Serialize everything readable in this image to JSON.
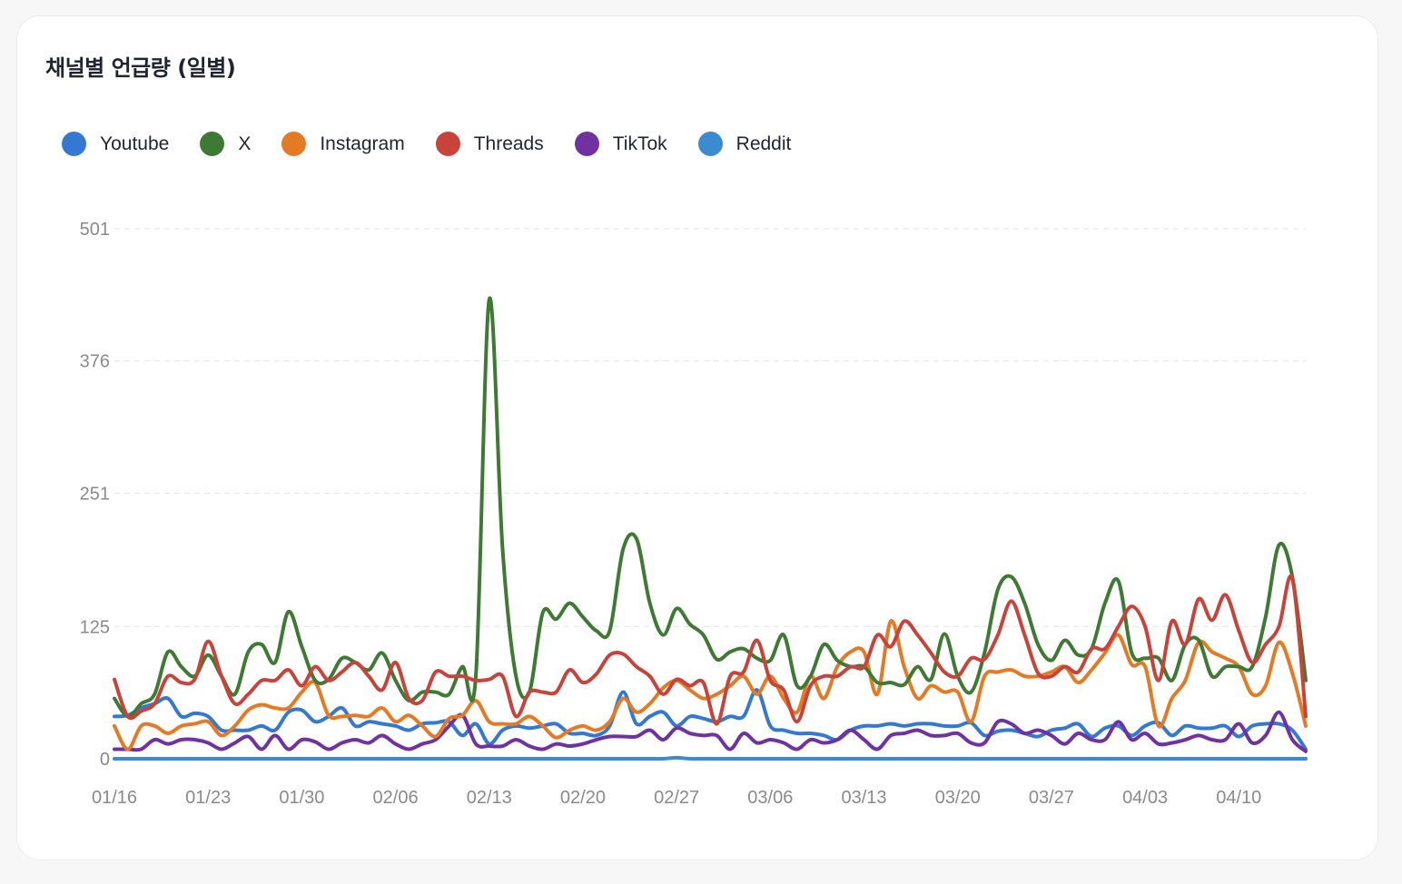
{
  "chart_data": {
    "type": "line",
    "title": "채널별 언급량 (일별)",
    "xlabel": "",
    "ylabel": "",
    "ylim": [
      0,
      501
    ],
    "yticks": [
      "0",
      "125",
      "251",
      "376",
      "501"
    ],
    "ytick_values": [
      0,
      125,
      251,
      376,
      501
    ],
    "grid": true,
    "legend_position": "top-left",
    "xtick_every": 7,
    "categories": [
      "01/16",
      "01/17",
      "01/18",
      "01/19",
      "01/20",
      "01/21",
      "01/22",
      "01/23",
      "01/24",
      "01/25",
      "01/26",
      "01/27",
      "01/28",
      "01/29",
      "01/30",
      "01/31",
      "02/01",
      "02/02",
      "02/03",
      "02/04",
      "02/05",
      "02/06",
      "02/07",
      "02/08",
      "02/09",
      "02/10",
      "02/11",
      "02/12",
      "02/13",
      "02/14",
      "02/15",
      "02/16",
      "02/17",
      "02/18",
      "02/19",
      "02/20",
      "02/21",
      "02/22",
      "02/23",
      "02/24",
      "02/25",
      "02/26",
      "02/27",
      "02/28",
      "03/01",
      "03/02",
      "03/03",
      "03/04",
      "03/05",
      "03/06",
      "03/07",
      "03/08",
      "03/09",
      "03/10",
      "03/11",
      "03/12",
      "03/13",
      "03/14",
      "03/15",
      "03/16",
      "03/17",
      "03/18",
      "03/19",
      "03/20",
      "03/21",
      "03/22",
      "03/23",
      "03/24",
      "03/25",
      "03/26",
      "03/27",
      "03/28",
      "03/29",
      "03/30",
      "03/31",
      "04/01",
      "04/02",
      "04/03",
      "04/04",
      "04/05",
      "04/06",
      "04/07",
      "04/08",
      "04/09",
      "04/10",
      "04/11",
      "04/12",
      "04/13",
      "04/14",
      "04/15"
    ],
    "series": [
      {
        "name": "Youtube",
        "color": "#3478d4",
        "values": [
          40,
          41,
          48,
          52,
          57,
          40,
          43,
          40,
          27,
          27,
          27,
          31,
          27,
          44,
          46,
          35,
          40,
          48,
          31,
          35,
          33,
          31,
          27,
          33,
          34,
          35,
          22,
          33,
          14,
          27,
          31,
          29,
          31,
          33,
          24,
          24,
          22,
          31,
          63,
          33,
          40,
          44,
          31,
          40,
          38,
          35,
          40,
          40,
          65,
          31,
          27,
          24,
          24,
          22,
          18,
          27,
          31,
          31,
          33,
          31,
          33,
          33,
          31,
          31,
          34,
          22,
          26,
          27,
          24,
          21,
          27,
          29,
          33,
          21,
          29,
          31,
          22,
          31,
          34,
          22,
          31,
          29,
          29,
          31,
          21,
          31,
          33,
          33,
          27,
          9
        ]
      },
      {
        "name": "X",
        "color": "#3f7a35",
        "values": [
          57,
          40,
          52,
          61,
          101,
          87,
          78,
          98,
          78,
          61,
          101,
          108,
          91,
          139,
          106,
          74,
          75,
          95,
          91,
          84,
          100,
          74,
          55,
          63,
          63,
          61,
          87,
          78,
          434,
          198,
          78,
          63,
          138,
          132,
          147,
          134,
          121,
          121,
          198,
          208,
          147,
          117,
          142,
          127,
          117,
          94,
          101,
          104,
          95,
          93,
          117,
          69,
          78,
          108,
          93,
          87,
          87,
          72,
          72,
          70,
          87,
          75,
          118,
          78,
          63,
          100,
          160,
          172,
          147,
          108,
          93,
          112,
          98,
          104,
          147,
          168,
          100,
          95,
          95,
          74,
          108,
          112,
          78,
          87,
          87,
          87,
          134,
          202,
          172,
          74
        ]
      },
      {
        "name": "Instagram",
        "color": "#e57a25",
        "values": [
          31,
          9,
          31,
          31,
          24,
          31,
          33,
          35,
          22,
          31,
          46,
          51,
          48,
          48,
          63,
          72,
          41,
          40,
          41,
          40,
          48,
          35,
          41,
          31,
          21,
          38,
          41,
          55,
          35,
          33,
          33,
          40,
          31,
          20,
          27,
          31,
          27,
          35,
          57,
          44,
          52,
          67,
          74,
          65,
          57,
          61,
          69,
          78,
          61,
          78,
          57,
          44,
          78,
          57,
          87,
          101,
          101,
          61,
          130,
          87,
          57,
          69,
          63,
          63,
          35,
          78,
          82,
          84,
          78,
          78,
          82,
          87,
          72,
          84,
          100,
          117,
          89,
          87,
          31,
          57,
          74,
          110,
          101,
          95,
          87,
          61,
          69,
          110,
          81,
          31
        ]
      },
      {
        "name": "Threads",
        "color": "#c8433a",
        "values": [
          75,
          40,
          45,
          52,
          78,
          72,
          75,
          111,
          78,
          52,
          61,
          74,
          74,
          84,
          69,
          87,
          74,
          82,
          91,
          78,
          65,
          91,
          57,
          55,
          82,
          78,
          78,
          74,
          75,
          78,
          40,
          63,
          63,
          63,
          84,
          72,
          80,
          98,
          99,
          87,
          78,
          61,
          75,
          69,
          72,
          33,
          78,
          82,
          112,
          74,
          65,
          35,
          69,
          78,
          78,
          87,
          87,
          117,
          106,
          130,
          117,
          100,
          82,
          78,
          95,
          94,
          117,
          149,
          117,
          81,
          78,
          87,
          82,
          104,
          104,
          125,
          144,
          125,
          74,
          130,
          108,
          151,
          131,
          155,
          121,
          91,
          108,
          125,
          170,
          40
        ]
      },
      {
        "name": "TikTok",
        "color": "#7032a0",
        "values": [
          9,
          9,
          9,
          18,
          14,
          18,
          18,
          15,
          9,
          15,
          21,
          9,
          22,
          9,
          18,
          16,
          9,
          15,
          18,
          15,
          22,
          14,
          9,
          14,
          18,
          31,
          41,
          14,
          12,
          12,
          18,
          12,
          9,
          14,
          12,
          14,
          18,
          21,
          21,
          21,
          27,
          18,
          29,
          24,
          22,
          22,
          9,
          24,
          15,
          18,
          15,
          9,
          18,
          15,
          18,
          27,
          18,
          9,
          22,
          24,
          27,
          22,
          22,
          24,
          15,
          15,
          35,
          33,
          24,
          27,
          22,
          14,
          24,
          18,
          18,
          35,
          18,
          24,
          14,
          15,
          18,
          22,
          18,
          18,
          33,
          15,
          22,
          44,
          18,
          7
        ]
      },
      {
        "name": "Reddit",
        "color": "#3a8bd0",
        "values": [
          0,
          0,
          0,
          0,
          0,
          0,
          0,
          0,
          0,
          0,
          0,
          0,
          0,
          0,
          0,
          0,
          0,
          0,
          0,
          0,
          0,
          0,
          0,
          0,
          0,
          0,
          0,
          0,
          0,
          0,
          0,
          0,
          0,
          0,
          0,
          0,
          0,
          0,
          0,
          0,
          0,
          0,
          1,
          0,
          0,
          0,
          0,
          0,
          0,
          0,
          0,
          0,
          0,
          0,
          0,
          0,
          0,
          0,
          0,
          0,
          0,
          0,
          0,
          0,
          0,
          0,
          0,
          0,
          0,
          0,
          0,
          0,
          0,
          0,
          0,
          0,
          0,
          0,
          0,
          0,
          0,
          0,
          0,
          0,
          0,
          0,
          0,
          0,
          0,
          0
        ]
      }
    ]
  }
}
